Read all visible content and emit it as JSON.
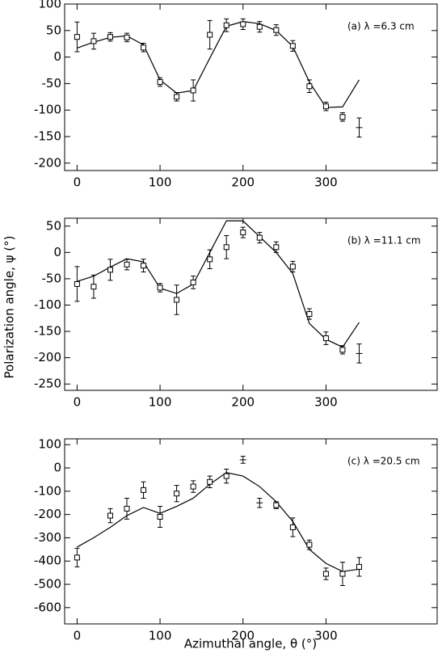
{
  "xlabel": "Azimuthal angle, θ (°)",
  "ylabel": "Polarization angle, ψ (°)",
  "chart_data": [
    {
      "type": "scatter",
      "annotation": "(a) λ =6.3 cm",
      "xlim": [
        -15,
        434
      ],
      "ylim": [
        -214,
        100
      ],
      "xticks": [
        0,
        100,
        200,
        300
      ],
      "yticks": [
        -200,
        -150,
        -100,
        -50,
        0,
        50,
        100
      ],
      "x": [
        0,
        20,
        40,
        60,
        80,
        100,
        120,
        140,
        160,
        180,
        200,
        220,
        240,
        260,
        280,
        300,
        320,
        340
      ],
      "values": [
        38,
        30,
        38,
        37,
        18,
        -47,
        -75,
        -63,
        42,
        60,
        62,
        57,
        51,
        21,
        -55,
        -93,
        -113,
        -133
      ],
      "errors": [
        28,
        15,
        8,
        8,
        8,
        8,
        8,
        20,
        27,
        12,
        10,
        10,
        10,
        10,
        12,
        8,
        8,
        18
      ],
      "marker_shown": [
        true,
        true,
        true,
        true,
        true,
        true,
        true,
        true,
        true,
        true,
        true,
        true,
        true,
        true,
        true,
        true,
        true,
        false
      ],
      "model": {
        "x": [
          0,
          20,
          40,
          60,
          80,
          100,
          120,
          140,
          160,
          180,
          200,
          220,
          240,
          260,
          280,
          300,
          320,
          340
        ],
        "values": [
          17,
          28,
          37,
          40,
          23,
          -43,
          -68,
          -63,
          -2,
          58,
          67,
          63,
          50,
          20,
          -47,
          -95,
          -94,
          -43
        ]
      },
      "color": "#000000"
    },
    {
      "type": "scatter",
      "annotation": "(b) λ =11.1 cm",
      "xlim": [
        -15,
        434
      ],
      "ylim": [
        -262,
        65
      ],
      "xticks": [
        0,
        100,
        200,
        300
      ],
      "yticks": [
        -250,
        -200,
        -150,
        -100,
        -50,
        0,
        50
      ],
      "x": [
        0,
        20,
        40,
        60,
        80,
        100,
        120,
        140,
        160,
        180,
        200,
        220,
        240,
        260,
        280,
        300,
        320,
        340
      ],
      "values": [
        -60,
        -65,
        -33,
        -23,
        -25,
        -67,
        -90,
        -57,
        -13,
        10,
        38,
        28,
        10,
        -27,
        -117,
        -163,
        -185,
        -192
      ],
      "errors": [
        33,
        22,
        20,
        10,
        12,
        8,
        28,
        12,
        18,
        22,
        10,
        10,
        10,
        10,
        10,
        12,
        8,
        18
      ],
      "marker_shown": [
        true,
        true,
        true,
        true,
        true,
        true,
        true,
        true,
        true,
        true,
        true,
        true,
        true,
        true,
        true,
        true,
        true,
        false
      ],
      "model": {
        "x": [
          0,
          20,
          40,
          60,
          80,
          100,
          120,
          140,
          160,
          180,
          200,
          220,
          240,
          260,
          280,
          300,
          320,
          340
        ],
        "values": [
          -55,
          -45,
          -28,
          -12,
          -18,
          -68,
          -78,
          -60,
          0,
          60,
          60,
          30,
          0,
          -40,
          -135,
          -165,
          -180,
          -133
        ]
      },
      "color": "#000000"
    },
    {
      "type": "scatter",
      "annotation": "(c) λ =20.5 cm",
      "xlim": [
        -15,
        434
      ],
      "ylim": [
        -670,
        125
      ],
      "xticks": [
        0,
        100,
        200,
        300
      ],
      "yticks": [
        -600,
        -500,
        -400,
        -300,
        -200,
        -100,
        0,
        100
      ],
      "x": [
        0,
        40,
        60,
        80,
        100,
        120,
        140,
        160,
        180,
        200,
        220,
        240,
        260,
        280,
        300,
        320,
        340
      ],
      "values": [
        -385,
        -205,
        -175,
        -95,
        -210,
        -110,
        -80,
        -60,
        -35,
        35,
        -150,
        -160,
        -255,
        -330,
        -455,
        -455,
        -425
      ],
      "errors": [
        40,
        30,
        45,
        35,
        45,
        35,
        25,
        25,
        30,
        15,
        20,
        15,
        40,
        20,
        25,
        50,
        40
      ],
      "marker_shown": [
        true,
        true,
        true,
        true,
        true,
        true,
        true,
        true,
        true,
        false,
        false,
        true,
        true,
        true,
        true,
        true,
        true
      ],
      "model": {
        "x": [
          0,
          20,
          40,
          60,
          80,
          100,
          120,
          140,
          160,
          180,
          200,
          220,
          240,
          260,
          280,
          300,
          320,
          340
        ],
        "values": [
          -340,
          -300,
          -255,
          -205,
          -170,
          -195,
          -165,
          -130,
          -70,
          -20,
          -35,
          -80,
          -145,
          -230,
          -350,
          -410,
          -445,
          -435
        ]
      },
      "color": "#000000"
    }
  ]
}
